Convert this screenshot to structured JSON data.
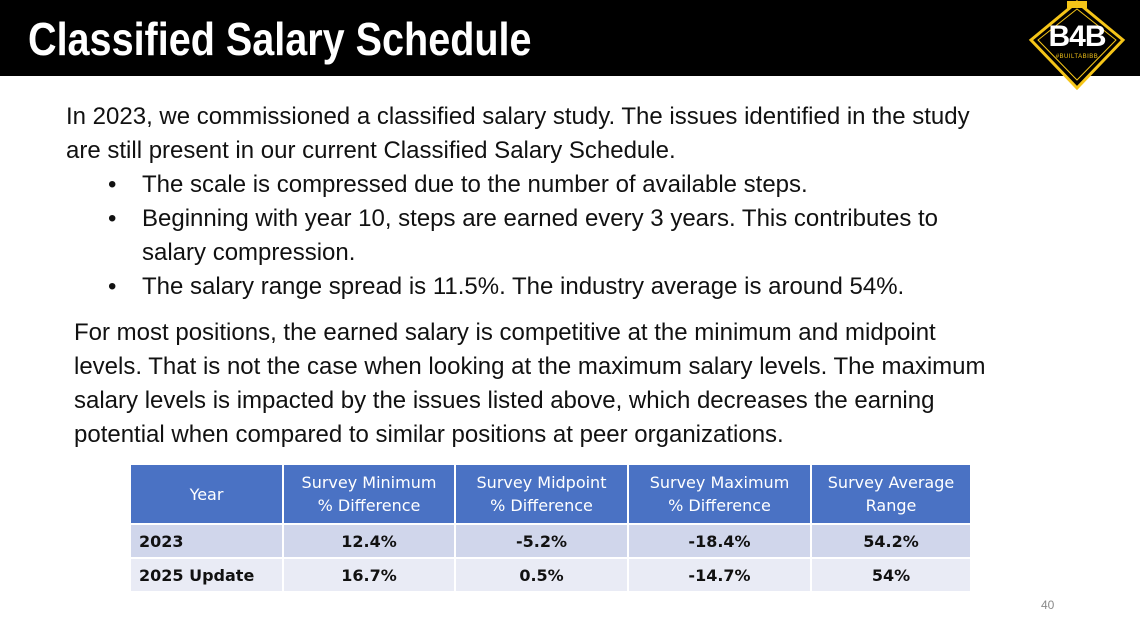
{
  "slide": {
    "title": "Classified Salary Schedule",
    "logo_text": "B4B",
    "logo_tag": "#BUILTABIBB",
    "page_number": "40"
  },
  "intro": {
    "line1": "In 2023, we commissioned a classified salary study.  The issues identified in the study",
    "line2": "are still present in our current Classified Salary Schedule."
  },
  "bullets": [
    {
      "line1": "The scale is compressed due to the number of available steps.",
      "line2": ""
    },
    {
      "line1": "Beginning with year 10, steps are earned every 3 years.  This contributes to",
      "line2": "salary compression."
    },
    {
      "line1": "The salary range spread is 11.5%.  The industry average is around 54%.",
      "line2": ""
    }
  ],
  "paragraph": {
    "line1": "For most positions, the earned salary is competitive at the minimum and midpoint",
    "line2": "levels.  That is not the case when looking at the maximum salary levels.  The maximum",
    "line3": "salary levels is impacted by the issues listed above, which decreases the earning",
    "line4": "potential when compared to similar positions at peer organizations."
  },
  "table": {
    "headers": [
      {
        "l1": "Year",
        "l2": ""
      },
      {
        "l1": "Survey Minimum",
        "l2": "% Difference"
      },
      {
        "l1": "Survey Midpoint",
        "l2": "% Difference"
      },
      {
        "l1": "Survey Maximum",
        "l2": "% Difference"
      },
      {
        "l1": "Survey Average",
        "l2": "Range"
      }
    ],
    "rows": [
      [
        "2023",
        "12.4%",
        "-5.2%",
        "-18.4%",
        "54.2%"
      ],
      [
        "2025 Update",
        "16.7%",
        "0.5%",
        "-14.7%",
        "54%"
      ]
    ]
  },
  "colors": {
    "header_bar": "#000000",
    "logo_gold": "#f5c518",
    "table_header": "#4a72c4",
    "row_a": "#d0d6eb",
    "row_b": "#e9ebf5"
  }
}
